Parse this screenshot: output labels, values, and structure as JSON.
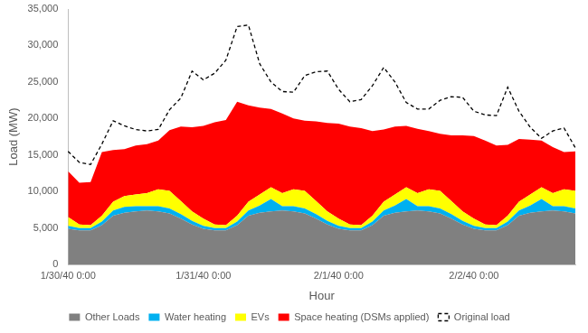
{
  "chart_data": {
    "type": "area",
    "x_label": "Hour",
    "y_label": "Load (MW)",
    "categories": [
      "1/30/40 0:00",
      null,
      null,
      null,
      null,
      null,
      null,
      null,
      null,
      null,
      null,
      null,
      "1/31/40 0:00",
      null,
      null,
      null,
      null,
      null,
      null,
      null,
      null,
      null,
      null,
      null,
      "2/1/40 0:00",
      null,
      null,
      null,
      null,
      null,
      null,
      null,
      null,
      null,
      null,
      null,
      "2/2/40 0:00",
      null,
      null,
      null,
      null,
      null,
      null,
      null,
      null,
      null
    ],
    "series": [
      {
        "name": "Other Loads",
        "color": "#808080",
        "type": "area",
        "values": [
          4900,
          4700,
          4700,
          5400,
          6700,
          7100,
          7300,
          7400,
          7300,
          7000,
          6300,
          5500,
          4900,
          4700,
          4700,
          5400,
          6700,
          7100,
          7300,
          7400,
          7300,
          7000,
          6300,
          5500,
          4900,
          4700,
          4700,
          5400,
          6700,
          7100,
          7300,
          7400,
          7300,
          7000,
          6300,
          5500,
          4900,
          4700,
          4700,
          5400,
          6700,
          7100,
          7300,
          7400,
          7300,
          7000
        ]
      },
      {
        "name": "Water heating",
        "color": "#00b0f0",
        "type": "area",
        "values": [
          400,
          300,
          300,
          500,
          700,
          800,
          700,
          600,
          700,
          700,
          600,
          500,
          400,
          300,
          300,
          500,
          700,
          1000,
          1700,
          600,
          700,
          700,
          600,
          500,
          400,
          300,
          300,
          500,
          700,
          1000,
          1700,
          600,
          700,
          700,
          600,
          500,
          400,
          300,
          300,
          500,
          700,
          1000,
          1700,
          600,
          700,
          700
        ]
      },
      {
        "name": "EVs",
        "color": "#ffff00",
        "type": "area",
        "values": [
          1200,
          500,
          400,
          800,
          1200,
          1500,
          1600,
          1800,
          2300,
          2400,
          1800,
          1300,
          1000,
          500,
          400,
          800,
          1200,
          1500,
          1600,
          1800,
          2300,
          2400,
          1800,
          1300,
          1000,
          500,
          400,
          800,
          1200,
          1500,
          1600,
          1800,
          2300,
          2400,
          1800,
          1300,
          1000,
          500,
          400,
          800,
          1200,
          1500,
          1600,
          1800,
          2300,
          2400
        ]
      },
      {
        "name": "Space heating (DSMs applied)",
        "color": "#ff0000",
        "type": "area",
        "values": [
          6300,
          5700,
          5900,
          8700,
          7100,
          6400,
          6700,
          6700,
          6700,
          8300,
          10200,
          11500,
          12700,
          14000,
          14400,
          15600,
          13200,
          11900,
          10700,
          10900,
          9700,
          9600,
          10900,
          12100,
          13000,
          13400,
          13300,
          11600,
          9900,
          9300,
          8400,
          8800,
          8000,
          7800,
          9000,
          10400,
          11300,
          11500,
          10900,
          9700,
          8600,
          7500,
          6400,
          6300,
          5100,
          5400
        ]
      },
      {
        "name": "Original load",
        "color": "#000000",
        "type": "line",
        "line_style": "dashed",
        "values": [
          15500,
          14000,
          13700,
          16500,
          19700,
          19000,
          18500,
          18300,
          18500,
          21200,
          22800,
          26500,
          25300,
          26200,
          28000,
          32600,
          32800,
          27500,
          25000,
          23700,
          23600,
          25900,
          26400,
          26500,
          24000,
          22300,
          22600,
          24500,
          27000,
          25000,
          22200,
          21300,
          21300,
          22500,
          23000,
          22900,
          21000,
          20500,
          20400,
          24300,
          21000,
          18800,
          17300,
          18300,
          18700,
          16000
        ]
      }
    ],
    "ylim": [
      0,
      35000
    ],
    "yticks": [
      0,
      {
        "value": 5000,
        "label": "5,000"
      },
      {
        "value": 10000,
        "label": "10,000"
      },
      {
        "value": 15000,
        "label": "15,000"
      },
      {
        "value": 20000,
        "label": "20,000"
      },
      {
        "value": 25000,
        "label": "25,000"
      },
      {
        "value": 30000,
        "label": "30,000"
      },
      {
        "value": 35000,
        "label": "35,000"
      }
    ],
    "grid": false,
    "legend": "bottom",
    "stacked": true
  }
}
